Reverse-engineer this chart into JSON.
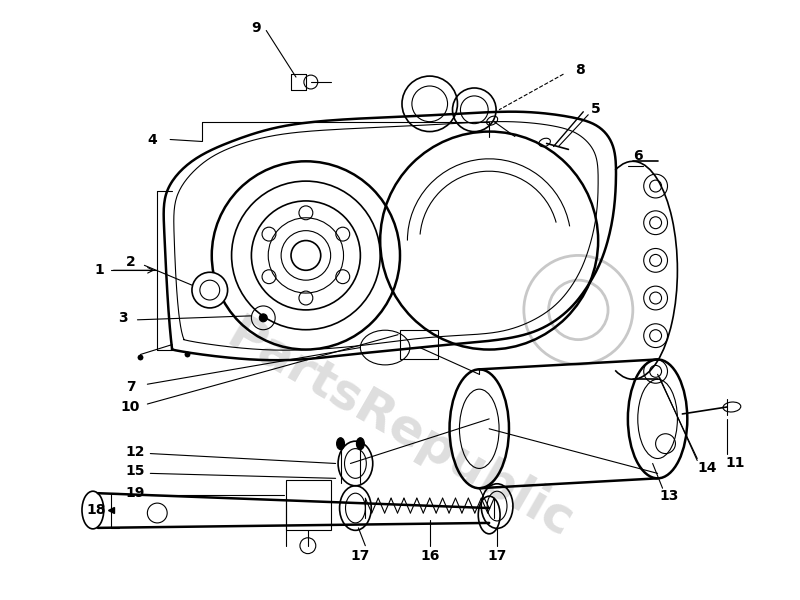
{
  "bg_color": "#ffffff",
  "line_color": "#000000",
  "watermark_color": "#c8c8c8",
  "lw_main": 1.8,
  "lw_med": 1.2,
  "lw_thin": 0.8,
  "figsize": [
    8.0,
    6.0
  ],
  "dpi": 100
}
